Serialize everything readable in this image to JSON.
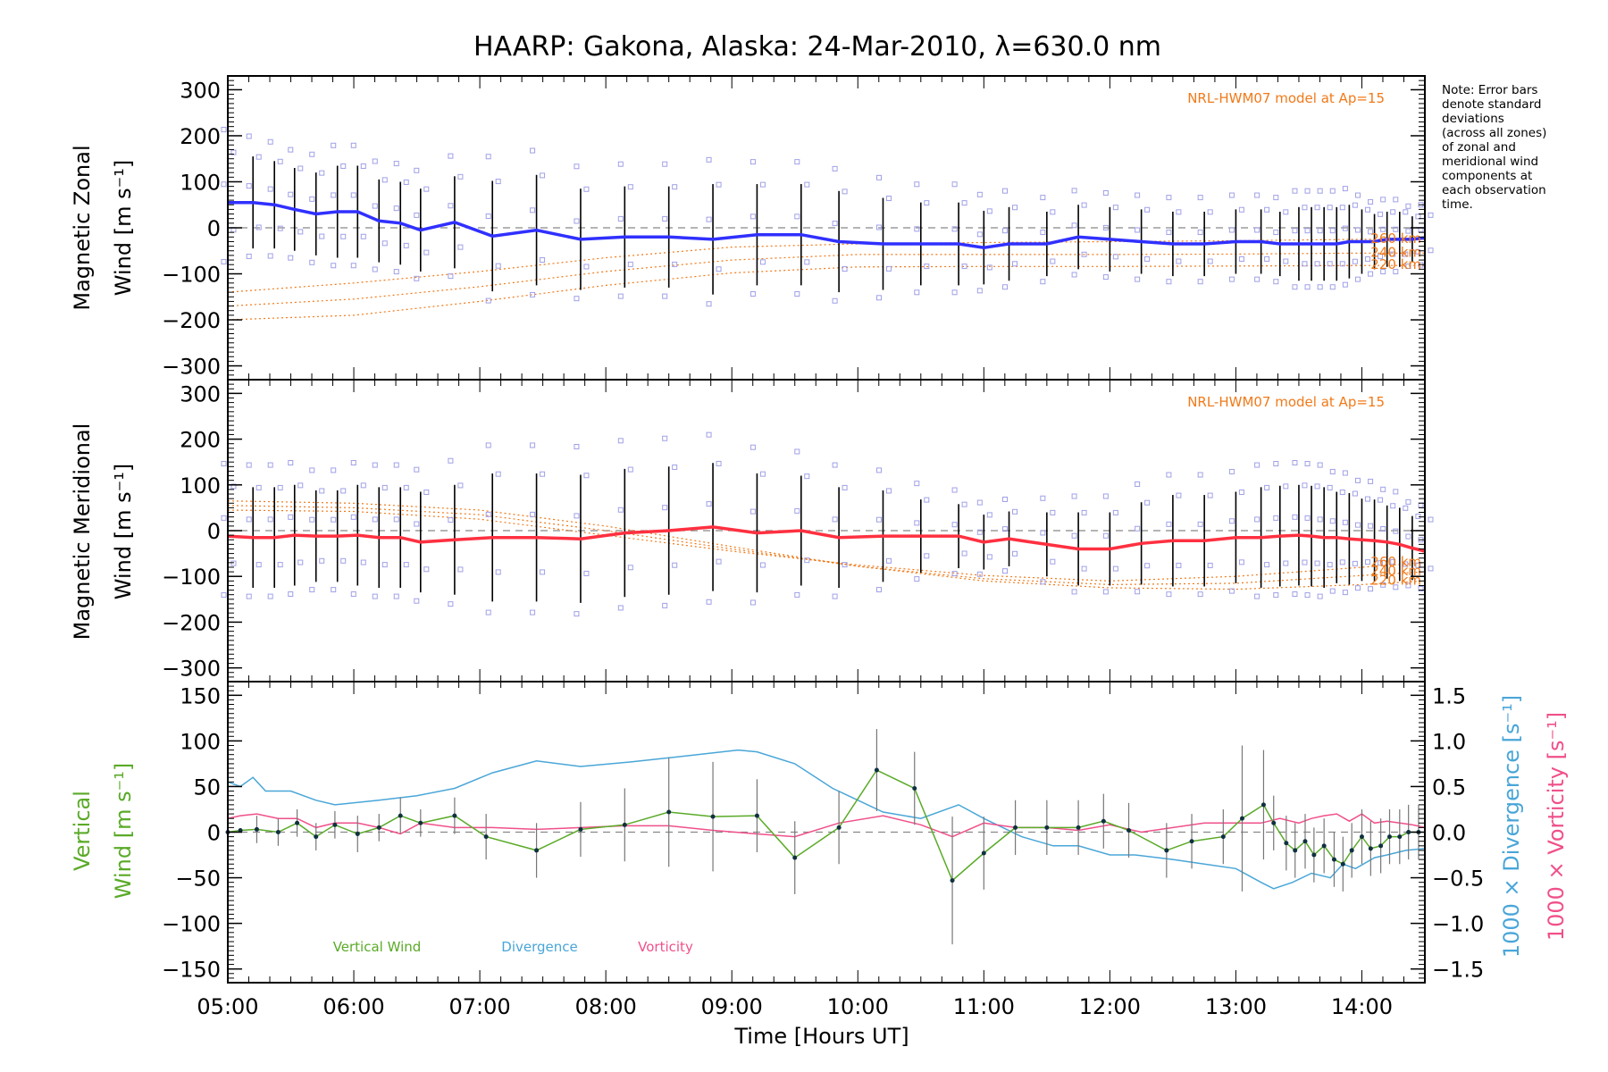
{
  "title": "HAARP: Gakona,  Alaska: 24-Mar-2010, λ=630.0 nm",
  "note": [
    "Note: Error bars",
    "denote standard",
    "deviations",
    "(across all zones)",
    "of zonal and",
    "meridional wind",
    "components at",
    "each observation",
    "time."
  ],
  "model_label": "NRL-HWM07 model at Ap=15",
  "altitude_labels": [
    "260 km",
    "240 km",
    "220 km"
  ],
  "colors": {
    "zonal": "#3030ff",
    "meridional": "#ff3040",
    "vertical": "#5aaa28",
    "divergence": "#49a6d8",
    "vorticity": "#f0508a",
    "model": "#f07a1a",
    "errorbar": "#000000",
    "scatter": "#a0a0e8",
    "zero_line": "#888888"
  },
  "chart_data": [
    {
      "type": "line",
      "name": "zonal",
      "ylabel": [
        "Magnetic Zonal",
        "Wind [m s⁻¹]"
      ],
      "ylim": [
        -330,
        330
      ],
      "yticks": [
        "300",
        "200",
        "100",
        "0",
        "−100",
        "−200",
        "−300"
      ],
      "x": [
        5.0,
        5.2,
        5.37,
        5.53,
        5.7,
        5.87,
        6.03,
        6.2,
        6.37,
        6.53,
        6.8,
        7.1,
        7.45,
        7.8,
        8.15,
        8.5,
        8.85,
        9.2,
        9.55,
        9.85,
        10.2,
        10.5,
        10.8,
        11.0,
        11.2,
        11.5,
        11.75,
        12.0,
        12.25,
        12.5,
        12.75,
        13.0,
        13.2,
        13.35,
        13.5,
        13.6,
        13.7,
        13.8,
        13.9,
        14.0,
        14.1,
        14.2,
        14.3,
        14.4,
        14.5
      ],
      "values": [
        55,
        55,
        50,
        40,
        30,
        35,
        35,
        15,
        10,
        -5,
        12,
        -18,
        -5,
        -25,
        -20,
        -20,
        -25,
        -15,
        -15,
        -30,
        -35,
        -35,
        -35,
        -43,
        -35,
        -35,
        -20,
        -25,
        -30,
        -35,
        -35,
        -30,
        -30,
        -35,
        -35,
        -35,
        -35,
        -35,
        -30,
        -30,
        -30,
        -25,
        -25,
        -25,
        -22
      ],
      "err": [
        110,
        100,
        95,
        90,
        90,
        100,
        100,
        90,
        90,
        90,
        100,
        120,
        120,
        110,
        110,
        110,
        120,
        110,
        110,
        110,
        100,
        90,
        90,
        80,
        80,
        70,
        70,
        70,
        70,
        70,
        70,
        70,
        70,
        70,
        80,
        80,
        80,
        80,
        80,
        70,
        60,
        60,
        60,
        50,
        50
      ],
      "model_series": [
        {
          "label": "260 km",
          "x": [
            5.0,
            6.0,
            7.0,
            8.0,
            9.0,
            10.0,
            11.0,
            12.0,
            13.0,
            14.0,
            14.5
          ],
          "values": [
            -140,
            -120,
            -95,
            -65,
            -42,
            -35,
            -32,
            -30,
            -28,
            -25,
            -25
          ]
        },
        {
          "label": "240 km",
          "x": [
            5.0,
            6.0,
            7.0,
            8.0,
            9.0,
            10.0,
            11.0,
            12.0,
            13.0,
            14.0,
            14.5
          ],
          "values": [
            -170,
            -155,
            -128,
            -95,
            -70,
            -58,
            -58,
            -58,
            -57,
            -55,
            -55
          ]
        },
        {
          "label": "220 km",
          "x": [
            5.0,
            6.0,
            7.0,
            8.0,
            9.0,
            10.0,
            11.0,
            12.0,
            13.0,
            14.0,
            14.5
          ],
          "values": [
            -200,
            -190,
            -160,
            -125,
            -98,
            -85,
            -84,
            -84,
            -83,
            -82,
            -82
          ]
        }
      ]
    },
    {
      "type": "line",
      "name": "meridional",
      "ylabel": [
        "Magnetic Meridional",
        "Wind [m s⁻¹]"
      ],
      "ylim": [
        -330,
        330
      ],
      "yticks": [
        "300",
        "200",
        "100",
        "0",
        "−100",
        "−200",
        "−300"
      ],
      "x": [
        5.0,
        5.2,
        5.37,
        5.53,
        5.7,
        5.87,
        6.03,
        6.2,
        6.37,
        6.53,
        6.8,
        7.1,
        7.45,
        7.8,
        8.15,
        8.5,
        8.85,
        9.2,
        9.55,
        9.85,
        10.2,
        10.5,
        10.8,
        11.0,
        11.2,
        11.5,
        11.75,
        12.0,
        12.25,
        12.5,
        12.75,
        13.0,
        13.2,
        13.35,
        13.5,
        13.6,
        13.7,
        13.8,
        13.9,
        14.0,
        14.1,
        14.2,
        14.3,
        14.4,
        14.5
      ],
      "values": [
        -12,
        -15,
        -15,
        -10,
        -12,
        -12,
        -10,
        -15,
        -15,
        -25,
        -20,
        -15,
        -15,
        -18,
        -5,
        0,
        8,
        -5,
        0,
        -15,
        -12,
        -12,
        -12,
        -25,
        -18,
        -30,
        -40,
        -40,
        -28,
        -22,
        -22,
        -15,
        -15,
        -12,
        -10,
        -12,
        -15,
        -15,
        -18,
        -20,
        -22,
        -25,
        -30,
        -38,
        -45
      ],
      "err": [
        110,
        110,
        110,
        110,
        100,
        100,
        110,
        110,
        110,
        110,
        120,
        140,
        140,
        140,
        140,
        140,
        140,
        130,
        120,
        110,
        100,
        80,
        70,
        60,
        60,
        70,
        80,
        80,
        90,
        100,
        100,
        100,
        110,
        110,
        110,
        110,
        110,
        100,
        100,
        90,
        90,
        80,
        80,
        70,
        70
      ],
      "model_series": [
        {
          "label": "260 km",
          "x": [
            5.0,
            6.0,
            7.0,
            8.0,
            9.0,
            10.0,
            11.0,
            12.0,
            13.0,
            14.0,
            14.5
          ],
          "values": [
            45,
            42,
            25,
            -10,
            -45,
            -75,
            -98,
            -110,
            -100,
            -80,
            -70
          ]
        },
        {
          "label": "240 km",
          "x": [
            5.0,
            6.0,
            7.0,
            8.0,
            9.0,
            10.0,
            11.0,
            12.0,
            13.0,
            14.0,
            14.5
          ],
          "values": [
            55,
            50,
            35,
            0,
            -40,
            -78,
            -105,
            -118,
            -115,
            -98,
            -90
          ]
        },
        {
          "label": "220 km",
          "x": [
            5.0,
            6.0,
            7.0,
            8.0,
            9.0,
            10.0,
            11.0,
            12.0,
            13.0,
            14.0,
            14.5
          ],
          "values": [
            65,
            60,
            45,
            10,
            -35,
            -78,
            -110,
            -125,
            -128,
            -118,
            -110
          ]
        }
      ]
    },
    {
      "type": "line",
      "name": "vertical-divergence-vorticity",
      "ylabel": [
        "Vertical",
        "Wind [m s⁻¹]"
      ],
      "ylabel_right": [
        "1000 × Divergence [s⁻¹]",
        "1000 × Vorticity [s⁻¹]"
      ],
      "ylim": [
        -165,
        165
      ],
      "ylim_right": [
        -1.65,
        1.65
      ],
      "yticks": [
        "150",
        "100",
        "50",
        "0",
        "−50",
        "−100",
        "−150"
      ],
      "yticks_right": [
        "1.5",
        "1.0",
        "0.5",
        "0.0",
        "−0.5",
        "−1.0",
        "−1.5"
      ],
      "xlabel": "Time [Hours UT]",
      "xticks": [
        "05:00",
        "06:00",
        "07:00",
        "08:00",
        "09:00",
        "10:00",
        "11:00",
        "12:00",
        "13:00",
        "14:00"
      ],
      "xlim": [
        5.0,
        14.5
      ],
      "legend": [
        "Vertical Wind",
        "Divergence",
        "Vorticity"
      ],
      "series": [
        {
          "name": "Vertical Wind",
          "x": [
            5.0,
            5.1,
            5.23,
            5.4,
            5.55,
            5.7,
            5.85,
            6.03,
            6.2,
            6.37,
            6.53,
            6.8,
            7.05,
            7.45,
            7.8,
            8.15,
            8.5,
            8.85,
            9.2,
            9.5,
            9.85,
            10.15,
            10.45,
            10.75,
            11.0,
            11.25,
            11.5,
            11.75,
            11.95,
            12.15,
            12.45,
            12.65,
            12.9,
            13.05,
            13.22,
            13.3,
            13.4,
            13.47,
            13.55,
            13.62,
            13.7,
            13.78,
            13.85,
            13.92,
            14.0,
            14.07,
            14.15,
            14.22,
            14.3,
            14.37,
            14.45
          ],
          "values": [
            0,
            2,
            3,
            0,
            10,
            -5,
            8,
            -2,
            5,
            18,
            10,
            18,
            -5,
            -20,
            3,
            8,
            22,
            17,
            18,
            -28,
            5,
            68,
            48,
            -53,
            -23,
            5,
            5,
            5,
            12,
            2,
            -20,
            -10,
            -5,
            15,
            30,
            10,
            -12,
            -20,
            -10,
            -25,
            -15,
            -30,
            -35,
            -20,
            -5,
            -18,
            -15,
            -5,
            -5,
            0,
            0
          ],
          "err": [
            0,
            0,
            15,
            15,
            15,
            15,
            15,
            20,
            15,
            20,
            15,
            20,
            25,
            30,
            30,
            40,
            60,
            60,
            40,
            40,
            40,
            45,
            40,
            70,
            40,
            30,
            30,
            30,
            30,
            30,
            30,
            30,
            30,
            80,
            60,
            30,
            30,
            30,
            30,
            30,
            30,
            30,
            30,
            30,
            30,
            30,
            30,
            30,
            30,
            30,
            30
          ]
        },
        {
          "name": "Divergence",
          "x": [
            5.0,
            5.1,
            5.2,
            5.3,
            5.5,
            5.7,
            5.85,
            6.2,
            6.5,
            6.8,
            7.1,
            7.45,
            7.8,
            8.2,
            8.6,
            9.05,
            9.2,
            9.5,
            9.8,
            10.2,
            10.5,
            10.8,
            11.0,
            11.3,
            11.55,
            11.75,
            12.0,
            12.2,
            12.5,
            12.75,
            13.0,
            13.2,
            13.3,
            13.45,
            13.6,
            13.75,
            13.85,
            13.95,
            14.1,
            14.2,
            14.35,
            14.5
          ],
          "values": [
            0.55,
            0.5,
            0.6,
            0.45,
            0.45,
            0.35,
            0.3,
            0.35,
            0.4,
            0.48,
            0.65,
            0.78,
            0.72,
            0.77,
            0.83,
            0.9,
            0.88,
            0.75,
            0.48,
            0.22,
            0.15,
            0.3,
            0.15,
            -0.05,
            -0.15,
            -0.15,
            -0.25,
            -0.25,
            -0.3,
            -0.35,
            -0.4,
            -0.55,
            -0.62,
            -0.55,
            -0.45,
            -0.5,
            -0.35,
            -0.4,
            -0.28,
            -0.25,
            -0.2,
            -0.18
          ]
        },
        {
          "name": "Vorticity",
          "x": [
            5.0,
            5.1,
            5.23,
            5.4,
            5.55,
            5.7,
            5.85,
            6.03,
            6.2,
            6.37,
            6.53,
            6.8,
            7.1,
            7.45,
            7.8,
            8.15,
            8.5,
            8.85,
            9.2,
            9.5,
            9.85,
            10.2,
            10.5,
            10.75,
            11.0,
            11.25,
            11.5,
            11.75,
            12.0,
            12.25,
            12.5,
            12.75,
            13.0,
            13.2,
            13.35,
            13.5,
            13.6,
            13.7,
            13.8,
            13.9,
            14.0,
            14.1,
            14.2,
            14.3,
            14.4,
            14.5
          ],
          "values": [
            0.15,
            0.18,
            0.2,
            0.15,
            0.15,
            0.05,
            0.1,
            0.1,
            0.05,
            -0.02,
            0.1,
            0.05,
            0.05,
            0.03,
            0.05,
            0.07,
            0.07,
            0.02,
            -0.02,
            -0.05,
            0.1,
            0.18,
            0.08,
            -0.05,
            0.1,
            0.05,
            0.05,
            0.02,
            0.08,
            0.0,
            0.05,
            0.1,
            0.1,
            0.1,
            0.15,
            0.1,
            0.15,
            0.18,
            0.2,
            0.12,
            0.2,
            0.1,
            0.12,
            0.1,
            0.08,
            0.05
          ]
        }
      ]
    }
  ]
}
